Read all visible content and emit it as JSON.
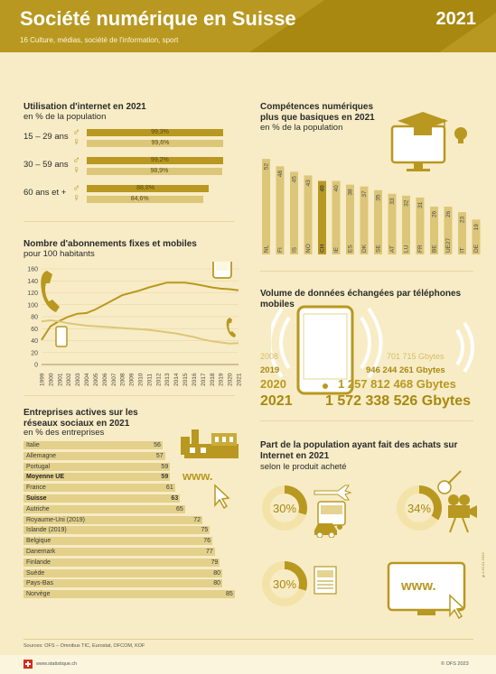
{
  "header": {
    "title": "Société numérique en Suisse",
    "subtitle": "16 Culture, médias, société de l'information, sport",
    "year": "2021"
  },
  "internet": {
    "title": "Utilisation d'internet en 2021",
    "subtitle": "en % de la population",
    "groups": [
      {
        "label": "15 – 29 ans",
        "male": 99.3,
        "female": 99.6,
        "male_text": "99,3%",
        "female_text": "99,6%"
      },
      {
        "label": "30 – 59 ans",
        "male": 99.2,
        "female": 98.9,
        "male_text": "99,2%",
        "female_text": "98,9%"
      },
      {
        "label": "60 ans et +",
        "male": 88.8,
        "female": 84.6,
        "male_text": "88,8%",
        "female_text": "84,6%"
      }
    ]
  },
  "abonnements": {
    "title": "Nombre d'abonnements fixes et mobiles",
    "subtitle": "pour 100 habitants"
  },
  "competences": {
    "title": "Compétences numériques plus que basiques en 2021",
    "subtitle": "en % de la population"
  },
  "entreprises": {
    "title": "Entreprises actives sur les réseaux sociaux en 2021",
    "subtitle": "en % des entreprises",
    "www": "www."
  },
  "volume": {
    "title": "Volume de données échangées par téléphones mobiles",
    "rows": [
      {
        "year": "2008",
        "value": "701 715 Gbytes"
      },
      {
        "year": "2019",
        "value": "946 244 261 Gbytes"
      },
      {
        "year": "2020",
        "value": "1 257 812 468 Gbytes"
      },
      {
        "year": "2021",
        "value": "1 572 338 526 Gbytes"
      }
    ]
  },
  "achats": {
    "title": "Part de la population ayant fait des achats sur Internet en 2021",
    "subtitle": "selon le produit acheté",
    "items": [
      {
        "value": 30,
        "text": "30%"
      },
      {
        "value": 34,
        "text": "34%"
      },
      {
        "value": 30,
        "text": "30%"
      }
    ],
    "www": "www."
  },
  "footer": {
    "sources": "Sources: OFS – Omnibus TIC, Eurostat, OFCOM, KOF",
    "site": "www.statistique.ch",
    "copyright": "© OFS 2023"
  },
  "colors": {
    "primary": "#b89820",
    "light": "#dcc678",
    "background": "#f8ecc6"
  },
  "chart_data": [
    {
      "type": "bar",
      "title": "Utilisation d'internet en 2021",
      "subtitle": "en % de la population",
      "categories": [
        "15 – 29 ans",
        "30 – 59 ans",
        "60 ans et +"
      ],
      "series": [
        {
          "name": "♂",
          "values": [
            99.3,
            99.2,
            88.8
          ]
        },
        {
          "name": "♀",
          "values": [
            99.6,
            98.9,
            84.6
          ]
        }
      ]
    },
    {
      "type": "line",
      "title": "Nombre d'abonnements fixes et mobiles",
      "subtitle": "pour 100 habitants",
      "x": [
        "1999",
        "2000",
        "2001",
        "2002",
        "2003",
        "2004",
        "2005",
        "2006",
        "2007",
        "2008",
        "2009",
        "2010",
        "2011",
        "2012",
        "2013",
        "2014",
        "2015",
        "2016",
        "2017",
        "2018",
        "2019",
        "2020",
        "2021"
      ],
      "yticks": [
        0,
        20,
        40,
        60,
        80,
        100,
        120,
        140,
        160
      ],
      "ylim": [
        0,
        160
      ],
      "series": [
        {
          "values": [
            41,
            64,
            73,
            80,
            85,
            86,
            92,
            100,
            108,
            116,
            120,
            124,
            129,
            133,
            137,
            137,
            137,
            135,
            132,
            129,
            127,
            126,
            124
          ]
        },
        {
          "values": [
            72,
            74,
            72,
            69,
            67,
            65,
            64,
            63,
            62,
            61,
            60,
            59,
            58,
            56,
            54,
            52,
            49,
            46,
            42,
            39,
            37,
            35,
            36
          ]
        }
      ]
    },
    {
      "type": "bar",
      "title": "Compétences numériques plus que basiques en 2021",
      "subtitle": "en % de la population",
      "categories": [
        "NL",
        "FI",
        "IS",
        "NO",
        "CH",
        "IE",
        "ES",
        "DK",
        "SE",
        "AT",
        "LU",
        "FR",
        "BE",
        "UE27",
        "IT",
        "DE"
      ],
      "values": [
        52,
        48,
        45,
        43,
        40,
        40,
        38,
        37,
        35,
        33,
        32,
        31,
        26,
        26,
        23,
        19
      ],
      "highlight": "CH"
    },
    {
      "type": "bar",
      "orientation": "horizontal",
      "title": "Entreprises actives sur les réseaux sociaux en 2021",
      "subtitle": "en % des entreprises",
      "categories": [
        "Italie",
        "Allemagne",
        "Portugal",
        "Moyenne UE",
        "France",
        "Suisse",
        "Autriche",
        "Royaume-Uni (2019)",
        "Islande (2019)",
        "Belgique",
        "Danemark",
        "Finlande",
        "Suède",
        "Pays-Bas",
        "Norvège"
      ],
      "values": [
        56,
        57,
        59,
        59,
        61,
        63,
        65,
        72,
        75,
        76,
        77,
        79,
        80,
        80,
        85
      ],
      "highlight": [
        "Moyenne UE",
        "Suisse"
      ]
    },
    {
      "type": "pie",
      "title": "Part de la population ayant fait des achats sur Internet en 2021",
      "subtitle": "selon le produit acheté",
      "values": [
        30,
        34,
        30
      ]
    }
  ]
}
